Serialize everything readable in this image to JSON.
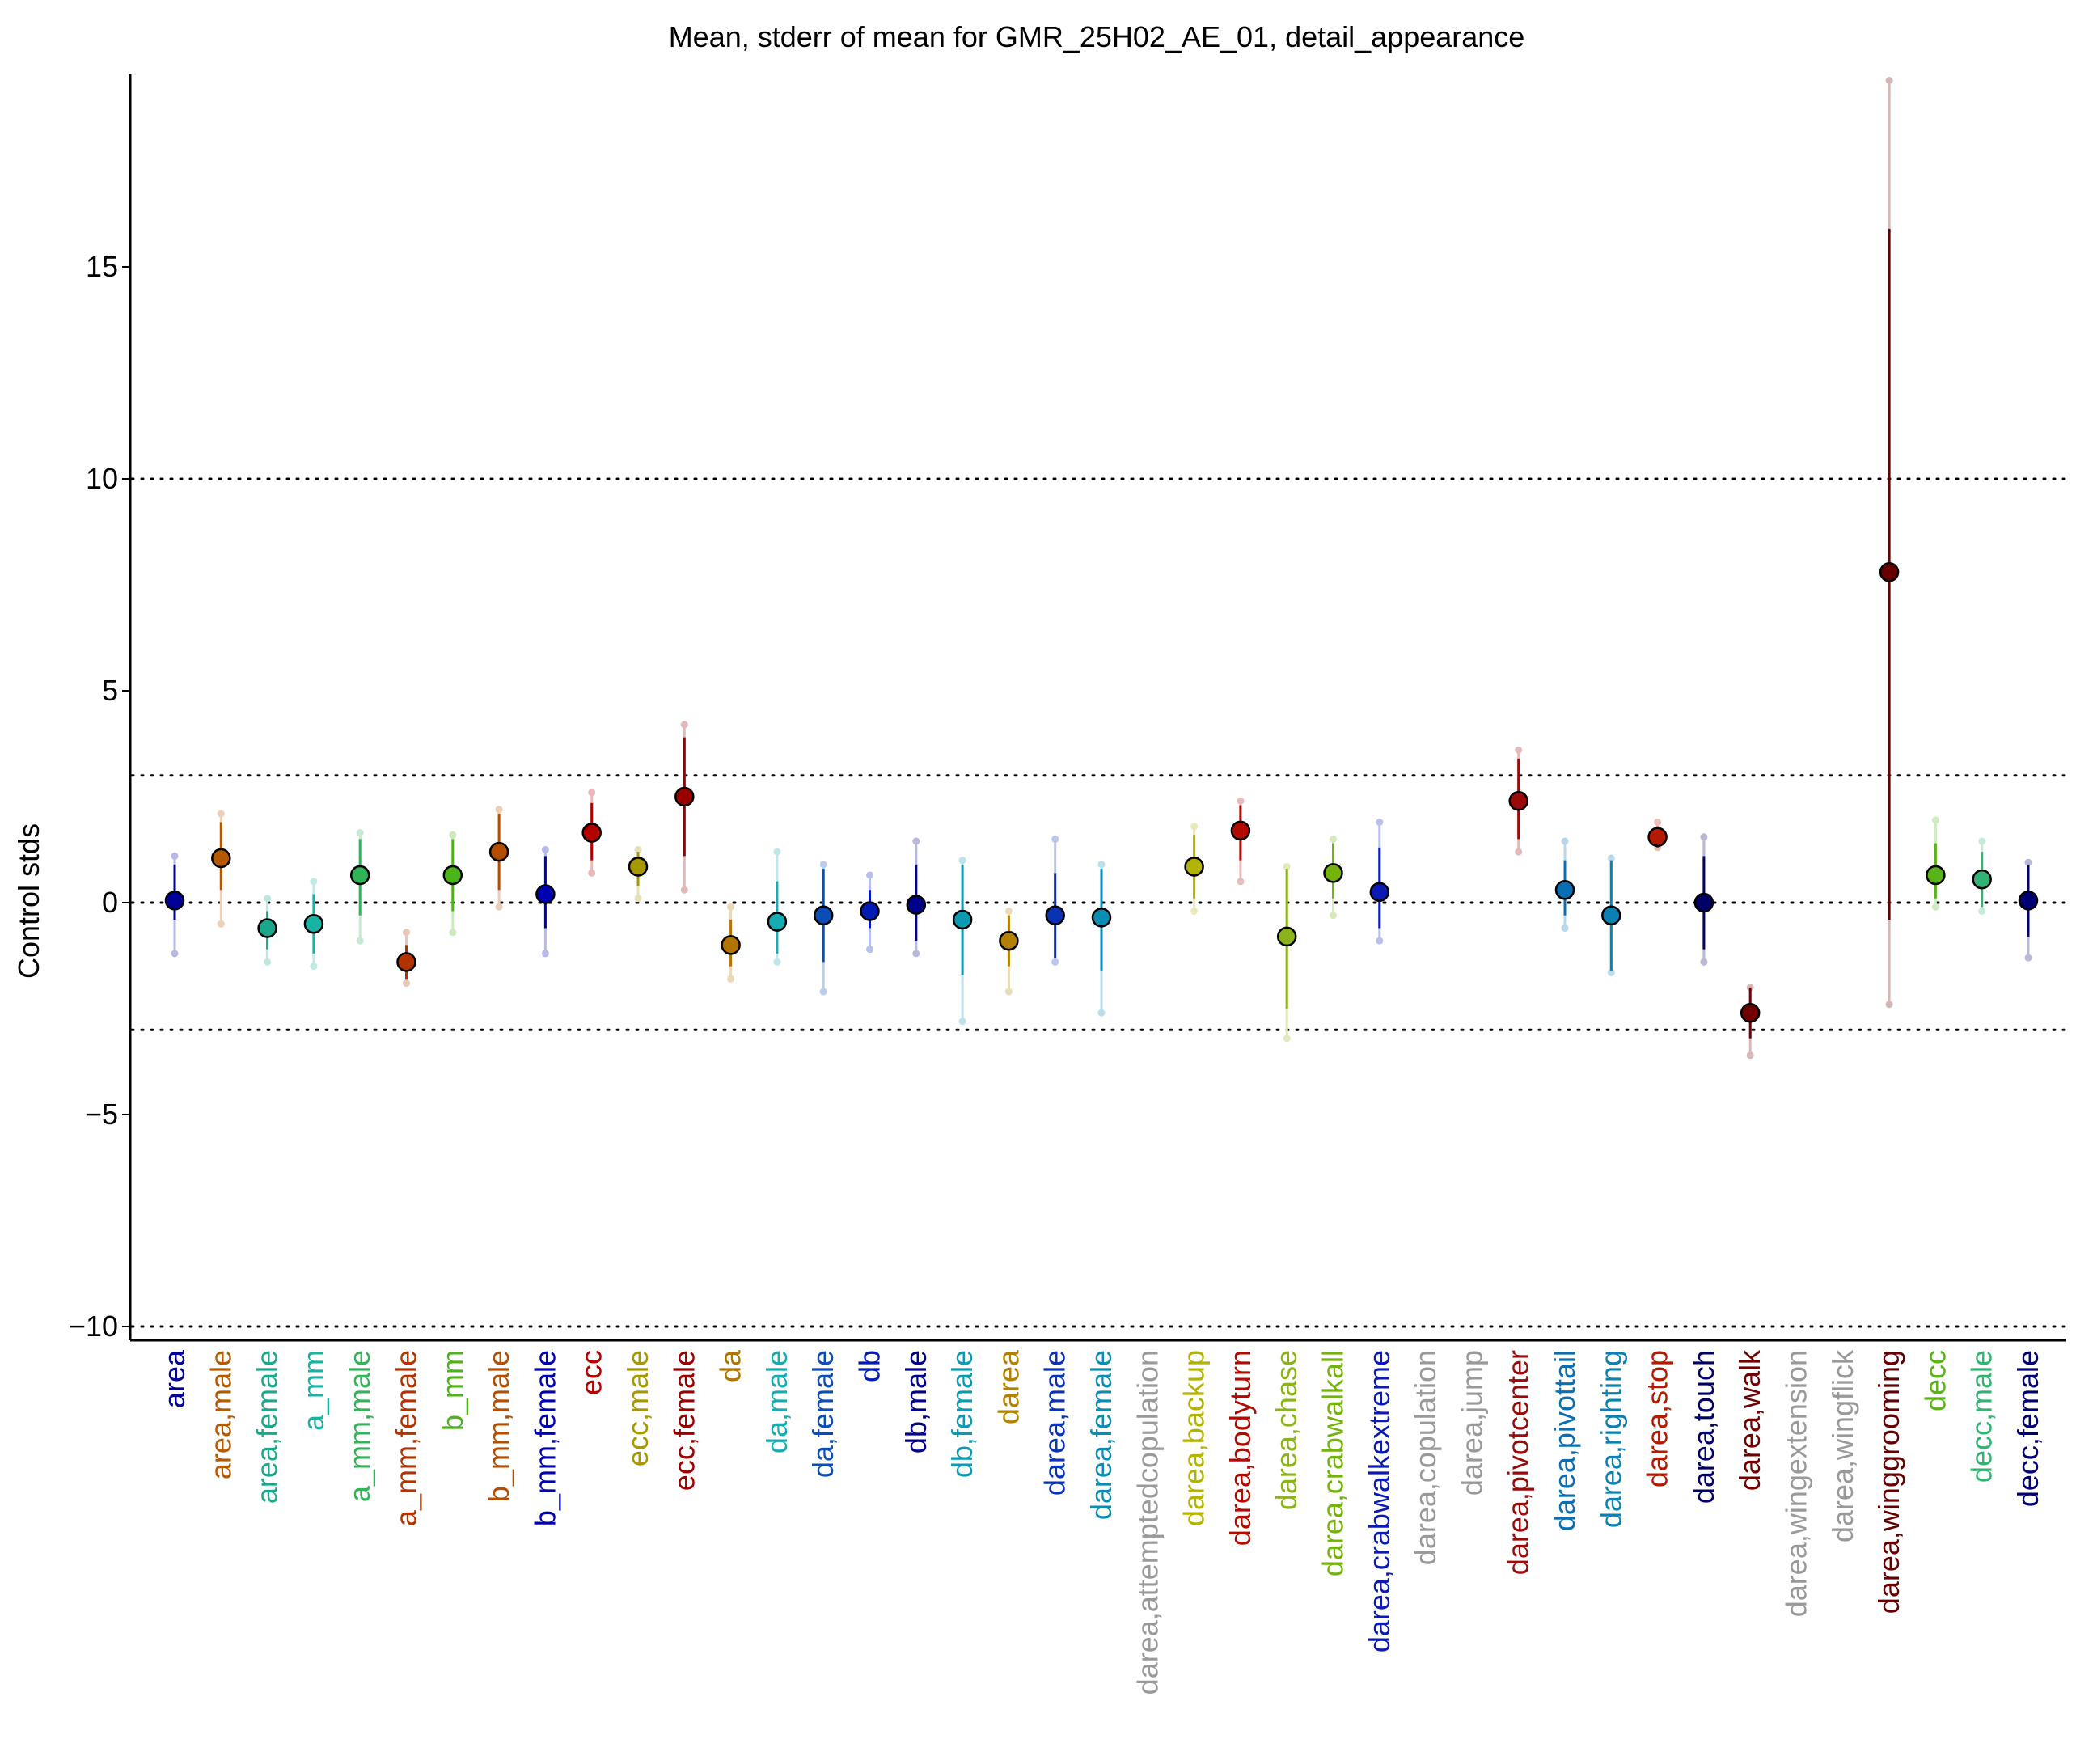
{
  "chart_data": {
    "type": "errorbar",
    "title": "Mean, stderr of mean for GMR_25H02_AE_01, detail_appearance",
    "ylabel": "Control stds",
    "xlabel": "",
    "ylim": [
      -10.3,
      19.5
    ],
    "yticks": [
      -10,
      -5,
      0,
      5,
      10,
      15
    ],
    "ytick_labels": [
      "−10",
      "−5",
      "0",
      "5",
      "10",
      "15"
    ],
    "reference_lines": [
      -10,
      -3,
      0,
      3,
      10
    ],
    "points": [
      {
        "label": "area",
        "color": "#000099",
        "mean": 0.05,
        "se_low": -0.4,
        "se_high": 0.9,
        "ext_low": -1.2,
        "ext_high": 1.1
      },
      {
        "label": "area,male",
        "color": "#B35900",
        "mean": 1.05,
        "se_low": 0.3,
        "se_high": 1.9,
        "ext_low": -0.5,
        "ext_high": 2.1
      },
      {
        "label": "area,female",
        "color": "#1AA78C",
        "mean": -0.6,
        "se_low": -1.1,
        "se_high": -0.2,
        "ext_low": -1.4,
        "ext_high": 0.1
      },
      {
        "label": "a_mm",
        "color": "#19B3A3",
        "mean": -0.5,
        "se_low": -1.2,
        "se_high": 0.2,
        "ext_low": -1.5,
        "ext_high": 0.5
      },
      {
        "label": "a_mm,male",
        "color": "#33B359",
        "mean": 0.65,
        "se_low": -0.3,
        "se_high": 1.5,
        "ext_low": -0.9,
        "ext_high": 1.65
      },
      {
        "label": "a_mm,female",
        "color": "#B33300",
        "mean": -1.4,
        "se_low": -1.8,
        "se_high": -1.0,
        "ext_low": -1.9,
        "ext_high": -0.7
      },
      {
        "label": "b_mm",
        "color": "#4DB31A",
        "mean": 0.65,
        "se_low": -0.2,
        "se_high": 1.5,
        "ext_low": -0.7,
        "ext_high": 1.6
      },
      {
        "label": "b_mm,male",
        "color": "#B34D00",
        "mean": 1.2,
        "se_low": 0.3,
        "se_high": 2.1,
        "ext_low": -0.1,
        "ext_high": 2.2
      },
      {
        "label": "b_mm,female",
        "color": "#0000B3",
        "mean": 0.2,
        "se_low": -0.6,
        "se_high": 1.1,
        "ext_low": -1.2,
        "ext_high": 1.25
      },
      {
        "label": "ecc",
        "color": "#B30000",
        "mean": 1.65,
        "se_low": 1.0,
        "se_high": 2.35,
        "ext_low": 0.7,
        "ext_high": 2.6
      },
      {
        "label": "ecc,male",
        "color": "#A69900",
        "mean": 0.85,
        "se_low": 0.4,
        "se_high": 1.2,
        "ext_low": 0.1,
        "ext_high": 1.25
      },
      {
        "label": "ecc,female",
        "color": "#990000",
        "mean": 2.5,
        "se_low": 1.1,
        "se_high": 3.9,
        "ext_low": 0.3,
        "ext_high": 4.2
      },
      {
        "label": "da",
        "color": "#B37300",
        "mean": -1.0,
        "se_low": -1.5,
        "se_high": -0.4,
        "ext_low": -1.8,
        "ext_high": -0.1
      },
      {
        "label": "da,male",
        "color": "#19ABB3",
        "mean": -0.45,
        "se_low": -1.2,
        "se_high": 0.5,
        "ext_low": -1.4,
        "ext_high": 1.2
      },
      {
        "label": "da,female",
        "color": "#0A4DB3",
        "mean": -0.3,
        "se_low": -1.4,
        "se_high": 0.8,
        "ext_low": -2.1,
        "ext_high": 0.9
      },
      {
        "label": "db",
        "color": "#001AB3",
        "mean": -0.2,
        "se_low": -0.6,
        "se_high": 0.3,
        "ext_low": -1.1,
        "ext_high": 0.65
      },
      {
        "label": "db,male",
        "color": "#00008C",
        "mean": -0.05,
        "se_low": -0.9,
        "se_high": 0.9,
        "ext_low": -1.2,
        "ext_high": 1.45
      },
      {
        "label": "db,female",
        "color": "#0A9BB3",
        "mean": -0.4,
        "se_low": -1.7,
        "se_high": 0.9,
        "ext_low": -2.8,
        "ext_high": 1.0
      },
      {
        "label": "darea",
        "color": "#B38000",
        "mean": -0.9,
        "se_low": -1.5,
        "se_high": -0.3,
        "ext_low": -2.1,
        "ext_high": -0.2
      },
      {
        "label": "darea,male",
        "color": "#0A33B3",
        "mean": -0.3,
        "se_low": -1.3,
        "se_high": 0.7,
        "ext_low": -1.4,
        "ext_high": 1.5
      },
      {
        "label": "darea,female",
        "color": "#0A8CB3",
        "mean": -0.35,
        "se_low": -1.6,
        "se_high": 0.8,
        "ext_low": -2.6,
        "ext_high": 0.9
      },
      {
        "label": "darea,attemptedcopulation",
        "color": "#999999"
      },
      {
        "label": "darea,backup",
        "color": "#B3B300",
        "mean": 0.85,
        "se_low": 0.1,
        "se_high": 1.6,
        "ext_low": -0.2,
        "ext_high": 1.8
      },
      {
        "label": "darea,bodyturn",
        "color": "#B30A00",
        "mean": 1.7,
        "se_low": 1.0,
        "se_high": 2.3,
        "ext_low": 0.5,
        "ext_high": 2.4
      },
      {
        "label": "darea,chase",
        "color": "#8CB31A",
        "mean": -0.8,
        "se_low": -2.5,
        "se_high": 0.8,
        "ext_low": -3.2,
        "ext_high": 0.85
      },
      {
        "label": "darea,crabwalkall",
        "color": "#73B30A",
        "mean": 0.7,
        "se_low": 0.1,
        "se_high": 1.4,
        "ext_low": -0.3,
        "ext_high": 1.5
      },
      {
        "label": "darea,crabwalkextreme",
        "color": "#0A1AB3",
        "mean": 0.25,
        "se_low": -0.6,
        "se_high": 1.3,
        "ext_low": -0.9,
        "ext_high": 1.9
      },
      {
        "label": "darea,copulation",
        "color": "#999999"
      },
      {
        "label": "darea,jump",
        "color": "#999999"
      },
      {
        "label": "darea,pivotcenter",
        "color": "#990A0A",
        "mean": 2.4,
        "se_low": 1.5,
        "se_high": 3.4,
        "ext_low": 1.2,
        "ext_high": 3.6
      },
      {
        "label": "darea,pivottail",
        "color": "#0A6EB3",
        "mean": 0.3,
        "se_low": -0.3,
        "se_high": 1.0,
        "ext_low": -0.6,
        "ext_high": 1.45
      },
      {
        "label": "darea,righting",
        "color": "#0A80B3",
        "mean": -0.3,
        "se_low": -1.6,
        "se_high": 1.0,
        "ext_low": -1.65,
        "ext_high": 1.05
      },
      {
        "label": "darea,stop",
        "color": "#B31A00",
        "mean": 1.55,
        "se_low": 1.3,
        "se_high": 1.8,
        "ext_low": 1.3,
        "ext_high": 1.9
      },
      {
        "label": "darea,touch",
        "color": "#000066",
        "mean": 0.0,
        "se_low": -1.1,
        "se_high": 1.1,
        "ext_low": -1.4,
        "ext_high": 1.55
      },
      {
        "label": "darea,walk",
        "color": "#730000",
        "mean": -2.6,
        "se_low": -3.2,
        "se_high": -2.0,
        "ext_low": -3.6,
        "ext_high": -2.0
      },
      {
        "label": "darea,wingextension",
        "color": "#999999"
      },
      {
        "label": "darea,wingflick",
        "color": "#999999"
      },
      {
        "label": "darea,winggrooming",
        "color": "#660000",
        "mean": 7.8,
        "se_low": -0.4,
        "se_high": 15.9,
        "ext_low": -2.4,
        "ext_high": 19.4
      },
      {
        "label": "decc",
        "color": "#59B31A",
        "mean": 0.65,
        "se_low": 0.1,
        "se_high": 1.4,
        "ext_low": -0.1,
        "ext_high": 1.95
      },
      {
        "label": "decc,male",
        "color": "#33B373",
        "mean": 0.55,
        "se_low": -0.1,
        "se_high": 1.2,
        "ext_low": -0.2,
        "ext_high": 1.45
      },
      {
        "label": "decc,female",
        "color": "#000073",
        "mean": 0.05,
        "se_low": -0.8,
        "se_high": 0.9,
        "ext_low": -1.3,
        "ext_high": 0.95
      }
    ]
  }
}
